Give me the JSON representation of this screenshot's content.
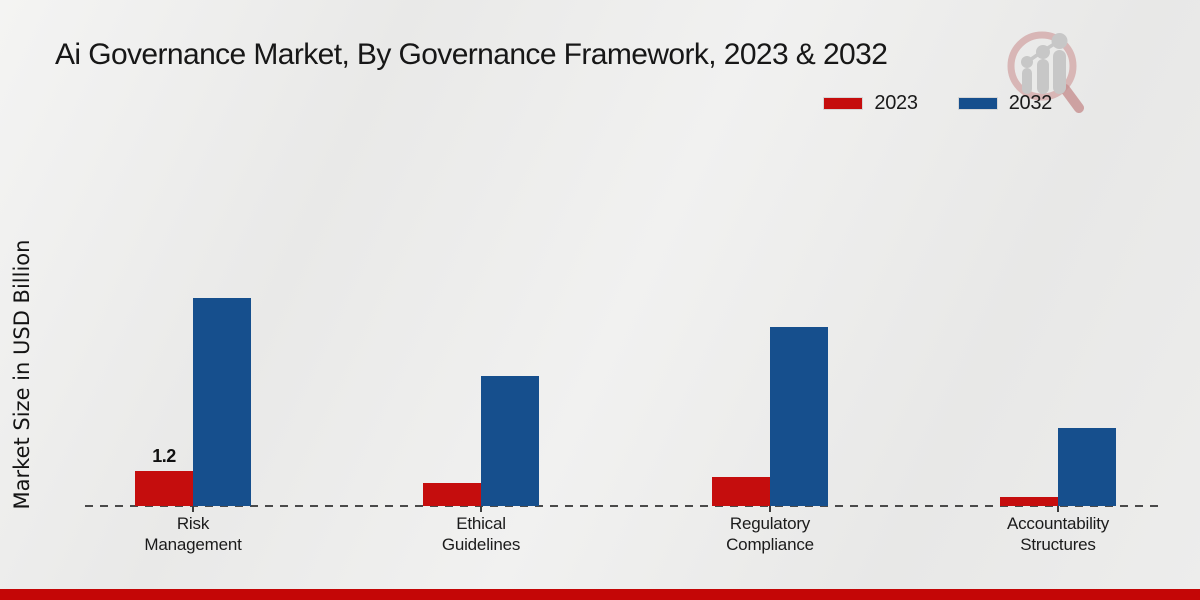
{
  "title": "Ai Governance Market, By Governance Framework, 2023 & 2032",
  "y_axis_label": "Market Size in USD Billion",
  "legend": [
    {
      "label": "2023",
      "color": "#c50d0d"
    },
    {
      "label": "2032",
      "color": "#164f8d"
    }
  ],
  "watermark": {
    "icon": "magnifier-bar-chart-logo",
    "glass_color": "#d2a4a4",
    "bars_color": "#c7c7c7"
  },
  "footer": {
    "strip_color": "#c40606"
  },
  "chart_data": {
    "type": "bar",
    "title": "Ai Governance Market, By Governance Framework, 2023 & 2032",
    "categories": [
      "Risk Management",
      "Ethical Guidelines",
      "Regulatory Compliance",
      "Accountability Structures"
    ],
    "series": [
      {
        "name": "2023",
        "color": "#c50d0d",
        "values": [
          1.2,
          0.8,
          1.0,
          0.3
        ]
      },
      {
        "name": "2032",
        "color": "#164f8d",
        "values": [
          7.2,
          4.5,
          6.2,
          2.7
        ]
      }
    ],
    "annotations": [
      {
        "series": "2023",
        "category_index": 0,
        "text": "1.2"
      }
    ],
    "xlabel": "",
    "ylabel": "Market Size in USD Billion",
    "ylim": [
      0,
      8
    ],
    "grid": false,
    "baseline_style": "dashed",
    "legend_position": "top-right"
  }
}
